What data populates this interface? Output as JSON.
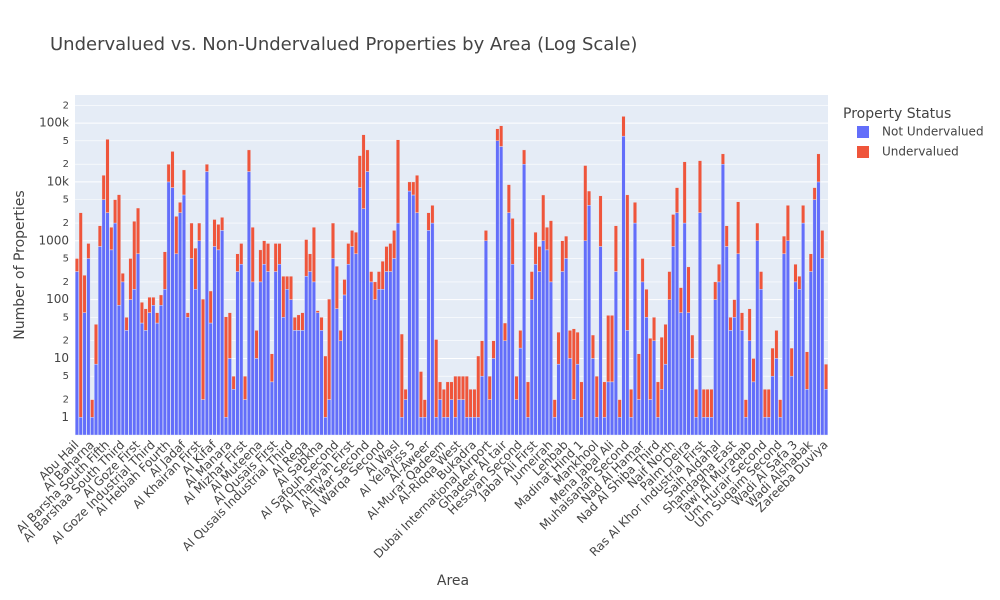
{
  "chart_data": {
    "type": "stacked_bar",
    "title": "Undervalued vs. Non-Undervalued Properties by Area (Log Scale)",
    "x_label": "Area",
    "y_label": "Number of Properties",
    "legend_title": "Property Status",
    "legend": "top-right",
    "log_y": true,
    "grid": true,
    "ylim": [
      0.5,
      300000
    ],
    "yticks": [
      1,
      2,
      5,
      10,
      {
        "value": 20,
        "label": "2"
      },
      {
        "value": 50,
        "label": "5"
      },
      100,
      {
        "value": 200,
        "label": "2"
      },
      {
        "value": 500,
        "label": "5"
      },
      1000,
      {
        "value": 2000,
        "label": "2"
      },
      {
        "value": 5000,
        "label": "5"
      },
      {
        "value": 10000,
        "label": "10k"
      },
      {
        "value": 20000,
        "label": "2"
      },
      {
        "value": 50000,
        "label": "5"
      },
      {
        "value": 100000,
        "label": "100k"
      },
      {
        "value": 200000,
        "label": "2"
      }
    ],
    "categories": [
      "Abu Hail",
      null,
      null,
      null,
      "Al Baharna",
      null,
      null,
      null,
      "Al Barsha South Fifth",
      null,
      null,
      null,
      "Al Barshaa South Third",
      null,
      null,
      null,
      "Al Goze First",
      null,
      null,
      null,
      "Al Goze Industrial Third",
      null,
      null,
      null,
      "Al Hebiah Fourth",
      null,
      null,
      null,
      "Al Jadaf",
      null,
      null,
      null,
      "Al Khairan First",
      null,
      null,
      null,
      "Al Kifaf",
      null,
      null,
      null,
      "Al Manara",
      null,
      null,
      null,
      "Al Mizhar First",
      null,
      null,
      null,
      "Al Muteena",
      null,
      null,
      null,
      "Al Qusais First",
      null,
      null,
      null,
      "Al Qusais Industrial Third",
      null,
      null,
      null,
      "Al Rega",
      null,
      null,
      null,
      "Al Sabkha",
      null,
      null,
      null,
      "Al Safouh Second",
      null,
      null,
      null,
      "Al Thanyah First",
      null,
      null,
      null,
      "Al Twar Second",
      null,
      null,
      null,
      "Al Warqa Second",
      null,
      null,
      null,
      "Al Wasl",
      null,
      null,
      null,
      "Al Yelayiss 5",
      null,
      null,
      null,
      "Al-Aweer",
      null,
      null,
      null,
      "Al-Murar Qadeem",
      null,
      null,
      null,
      "Al-Riqqa West",
      null,
      null,
      null,
      "Bukadra",
      null,
      null,
      null,
      "Dubai International Airport",
      null,
      null,
      null,
      "Ghadeer Al tair",
      null,
      null,
      null,
      "Hessyan Second",
      null,
      null,
      null,
      "Jabal Ali First",
      null,
      null,
      null,
      "Jumeirah",
      null,
      null,
      null,
      "Lehbab",
      null,
      null,
      null,
      "Madinat Hind 1",
      null,
      null,
      null,
      "Mankhool",
      null,
      null,
      null,
      "Mena Jabal Ali",
      null,
      null,
      null,
      "Muhaisanah Second",
      null,
      null,
      null,
      "Nad Al Hamar",
      null,
      null,
      null,
      "Nad Al Shiba Third",
      null,
      null,
      null,
      "Naif North",
      null,
      null,
      null,
      "Palm Deira",
      null,
      null,
      null,
      "Ras Al Khor Industrial First",
      null,
      null,
      null,
      "Saih Aldahal",
      null,
      null,
      null,
      "Shandagha East",
      null,
      null,
      null,
      "Tawi Al Muraqab",
      null,
      null,
      null,
      "Um Hurair Second",
      null,
      null,
      null,
      "Um Suqaim Second",
      null,
      null,
      null,
      "Wadi Al Safa 3",
      null,
      null,
      null,
      "Wadi Alshabak",
      null,
      null,
      null,
      "Zareeba Duviya"
    ],
    "series": [
      {
        "name": "Not Undervalued",
        "color": "#636efa",
        "values": [
          300,
          1,
          60,
          500,
          1,
          8,
          800,
          5000,
          3000,
          700,
          2000,
          80,
          200,
          30,
          100,
          150,
          600,
          40,
          30,
          60,
          80,
          40,
          80,
          150,
          10000,
          8000,
          600,
          3000,
          6000,
          50,
          500,
          150,
          1000,
          2,
          15000,
          40,
          800,
          700,
          1500,
          1,
          10,
          3,
          300,
          400,
          2,
          15000,
          200,
          10,
          200,
          400,
          300,
          4,
          300,
          400,
          50,
          150,
          100,
          30,
          30,
          30,
          250,
          300,
          200,
          60,
          30,
          1,
          2,
          500,
          70,
          20,
          120,
          400,
          800,
          600,
          8000,
          3500,
          15000,
          200,
          100,
          150,
          150,
          300,
          300,
          500,
          2000,
          1,
          2,
          7000,
          6000,
          3000,
          1,
          1,
          1500,
          2000,
          1,
          2,
          1,
          1,
          2,
          1,
          2,
          2,
          1,
          1,
          1,
          1,
          5,
          1000,
          2,
          10,
          50000,
          40000,
          20,
          3000,
          400,
          2,
          15,
          20000,
          1,
          100,
          400,
          300,
          1000,
          700,
          200,
          1,
          8,
          300,
          500,
          10,
          2,
          8,
          1,
          1000,
          4000,
          10,
          1,
          800,
          1,
          4,
          4,
          300,
          1,
          60000,
          30,
          1,
          2000,
          2,
          200,
          50,
          2,
          20,
          1,
          3,
          8,
          100,
          800,
          3000,
          60,
          2000,
          60,
          10,
          1,
          3000,
          1,
          1,
          1,
          100,
          200,
          20000,
          800,
          30,
          50,
          600,
          30,
          1,
          20,
          4,
          1000,
          150,
          1,
          1,
          5,
          10,
          1,
          600,
          1000,
          5,
          200,
          150,
          2000,
          3,
          300,
          5000,
          10000,
          500,
          3
        ]
      },
      {
        "name": "Undervalued",
        "color": "#EF553B",
        "values": [
          200,
          3000,
          200,
          400,
          1,
          30,
          1000,
          8000,
          50000,
          1000,
          3000,
          6000,
          80,
          20,
          400,
          2000,
          3000,
          50,
          40,
          50,
          30,
          20,
          40,
          500,
          10000,
          25000,
          2000,
          1500,
          10000,
          10,
          1500,
          600,
          1000,
          100,
          5000,
          100,
          1500,
          1200,
          1000,
          50,
          50,
          2,
          300,
          500,
          3,
          20000,
          1500,
          20,
          500,
          600,
          600,
          8,
          600,
          500,
          200,
          100,
          150,
          20,
          25,
          30,
          800,
          300,
          1500,
          5,
          20,
          10,
          100,
          1500,
          300,
          10,
          100,
          500,
          700,
          800,
          20000,
          60000,
          20000,
          100,
          100,
          150,
          300,
          500,
          600,
          1000,
          50000,
          25,
          1,
          3000,
          4000,
          10000,
          5,
          1,
          1500,
          2000,
          20,
          2,
          2,
          3,
          2,
          4,
          3,
          3,
          4,
          2,
          2,
          10,
          15,
          500,
          3,
          10,
          30000,
          50000,
          20,
          6000,
          2000,
          3,
          15,
          15000,
          3,
          200,
          1000,
          500,
          5000,
          1000,
          2000,
          1,
          20,
          700,
          700,
          20,
          30,
          20,
          3,
          18000,
          3000,
          15,
          4,
          5000,
          3,
          50,
          50,
          1500,
          1,
          70000,
          6000,
          2,
          2500,
          10,
          300,
          100,
          20,
          30,
          3,
          20,
          30,
          200,
          2000,
          5000,
          100,
          20000,
          300,
          15,
          2,
          20000,
          2,
          2,
          2,
          100,
          200,
          10000,
          1000,
          20,
          50,
          4000,
          30,
          1,
          50,
          6,
          1000,
          150,
          2,
          2,
          10,
          20,
          1,
          600,
          3000,
          10,
          200,
          100,
          2000,
          10,
          300,
          3000,
          20000,
          1000,
          5
        ]
      }
    ]
  }
}
